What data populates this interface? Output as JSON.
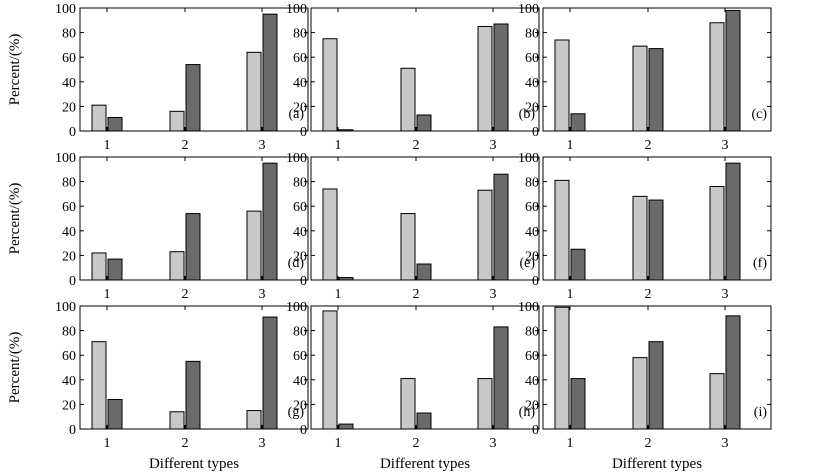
{
  "colors": {
    "series_light": "#c8c8c8",
    "series_dark": "#6a6a6a",
    "stroke": "#000000"
  },
  "labels": {
    "ylabel": "Percent/(%)",
    "xlabel": "Different types"
  },
  "chart_data": [
    {
      "type": "bar",
      "panel": "(a)",
      "categories": [
        "1",
        "2",
        "3"
      ],
      "ylim": [
        0,
        100
      ],
      "yticks": [
        0,
        20,
        40,
        60,
        80,
        100
      ],
      "series": [
        {
          "name": "light",
          "values": [
            21,
            16,
            64
          ]
        },
        {
          "name": "dark",
          "values": [
            11,
            54,
            95
          ]
        }
      ]
    },
    {
      "type": "bar",
      "panel": "(b)",
      "categories": [
        "1",
        "2",
        "3"
      ],
      "ylim": [
        0,
        100
      ],
      "yticks": [
        0,
        20,
        40,
        60,
        80,
        100
      ],
      "series": [
        {
          "name": "light",
          "values": [
            75,
            51,
            85
          ]
        },
        {
          "name": "dark",
          "values": [
            1,
            13,
            87
          ]
        }
      ]
    },
    {
      "type": "bar",
      "panel": "(c)",
      "categories": [
        "1",
        "2",
        "3"
      ],
      "ylim": [
        0,
        100
      ],
      "yticks": [
        0,
        20,
        40,
        60,
        80,
        100
      ],
      "series": [
        {
          "name": "light",
          "values": [
            74,
            69,
            88
          ]
        },
        {
          "name": "dark",
          "values": [
            14,
            67,
            98
          ]
        }
      ]
    },
    {
      "type": "bar",
      "panel": "(d)",
      "categories": [
        "1",
        "2",
        "3"
      ],
      "ylim": [
        0,
        100
      ],
      "yticks": [
        0,
        20,
        40,
        60,
        80,
        100
      ],
      "series": [
        {
          "name": "light",
          "values": [
            22,
            23,
            56
          ]
        },
        {
          "name": "dark",
          "values": [
            17,
            54,
            95
          ]
        }
      ]
    },
    {
      "type": "bar",
      "panel": "(e)",
      "categories": [
        "1",
        "2",
        "3"
      ],
      "ylim": [
        0,
        100
      ],
      "yticks": [
        0,
        20,
        40,
        60,
        80,
        100
      ],
      "series": [
        {
          "name": "light",
          "values": [
            74,
            54,
            73
          ]
        },
        {
          "name": "dark",
          "values": [
            2,
            13,
            86
          ]
        }
      ]
    },
    {
      "type": "bar",
      "panel": "(f)",
      "categories": [
        "1",
        "2",
        "3"
      ],
      "ylim": [
        0,
        100
      ],
      "yticks": [
        0,
        20,
        40,
        60,
        80,
        100
      ],
      "series": [
        {
          "name": "light",
          "values": [
            81,
            68,
            76
          ]
        },
        {
          "name": "dark",
          "values": [
            25,
            65,
            95
          ]
        }
      ]
    },
    {
      "type": "bar",
      "panel": "(g)",
      "categories": [
        "1",
        "2",
        "3"
      ],
      "ylim": [
        0,
        100
      ],
      "yticks": [
        0,
        20,
        40,
        60,
        80,
        100
      ],
      "series": [
        {
          "name": "light",
          "values": [
            71,
            14,
            15
          ]
        },
        {
          "name": "dark",
          "values": [
            24,
            55,
            91
          ]
        }
      ]
    },
    {
      "type": "bar",
      "panel": "(h)",
      "categories": [
        "1",
        "2",
        "3"
      ],
      "ylim": [
        0,
        100
      ],
      "yticks": [
        0,
        20,
        40,
        60,
        80,
        100
      ],
      "series": [
        {
          "name": "light",
          "values": [
            96,
            41,
            41
          ]
        },
        {
          "name": "dark",
          "values": [
            4,
            13,
            83
          ]
        }
      ]
    },
    {
      "type": "bar",
      "panel": "(i)",
      "categories": [
        "1",
        "2",
        "3"
      ],
      "ylim": [
        0,
        100
      ],
      "yticks": [
        0,
        20,
        40,
        60,
        80,
        100
      ],
      "series": [
        {
          "name": "light",
          "values": [
            99,
            58,
            45
          ]
        },
        {
          "name": "dark",
          "values": [
            41,
            71,
            92
          ]
        }
      ]
    }
  ]
}
